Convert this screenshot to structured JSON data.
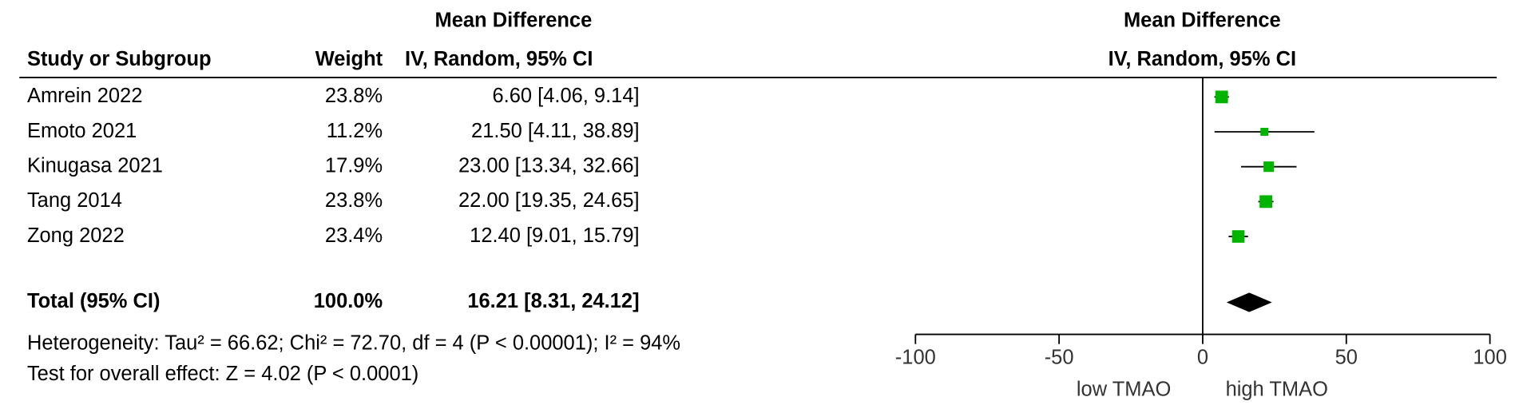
{
  "chart_data": {
    "type": "forest",
    "column_group_title": "Mean Difference",
    "columns": [
      "Study or Subgroup",
      "Weight",
      "IV, Random, 95% CI"
    ],
    "plot_title": "Mean Difference",
    "plot_subtitle": "IV, Random, 95% CI",
    "studies": {
      "names": [
        "Amrein 2022",
        "Emoto 2021",
        "Kinugasa 2021",
        "Tang 2014",
        "Zong 2022"
      ],
      "weights": [
        23.8,
        11.2,
        17.9,
        23.8,
        23.4
      ],
      "weight_labels": [
        "23.8%",
        "11.2%",
        "17.9%",
        "23.8%",
        "23.4%"
      ],
      "values": [
        6.6,
        21.5,
        23.0,
        22.0,
        12.4
      ],
      "ci_low": [
        4.06,
        4.11,
        13.34,
        19.35,
        9.01
      ],
      "ci_high": [
        9.14,
        38.89,
        32.66,
        24.65,
        15.79
      ],
      "value_labels": [
        "6.60 [4.06, 9.14]",
        "21.50 [4.11, 38.89]",
        "23.00 [13.34, 32.66]",
        "22.00 [19.35, 24.65]",
        "12.40 [9.01, 15.79]"
      ]
    },
    "total": {
      "name": "Total (95% CI)",
      "weight": 100.0,
      "weight_label": "100.0%",
      "value": 16.21,
      "ci_low": 8.31,
      "ci_high": 24.12,
      "value_label": "16.21 [8.31, 24.12]"
    },
    "heterogeneity": "Heterogeneity: Tau² = 66.62; Chi² = 72.70, df = 4 (P < 0.00001); I² = 94%",
    "overall_effect": "Test for overall effect: Z = 4.02 (P < 0.0001)",
    "xlim": [
      -100,
      100
    ],
    "xticks": [
      -100,
      -50,
      0,
      50,
      100
    ],
    "x_left_label": "low TMAO",
    "x_right_label": "high TMAO",
    "color": "#00b400"
  }
}
